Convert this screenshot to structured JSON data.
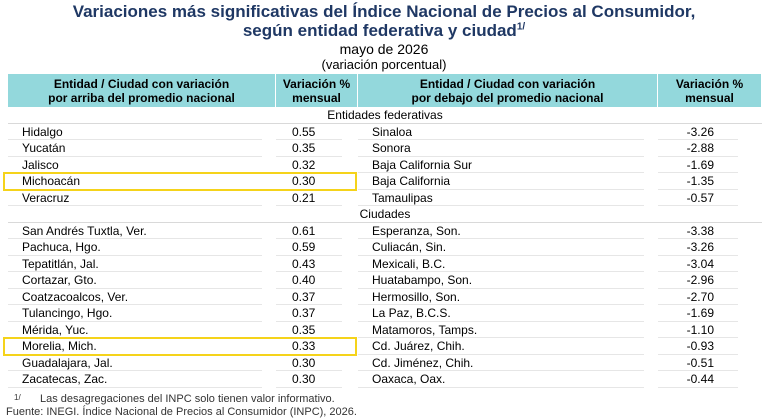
{
  "header": {
    "title_lines": [
      "Variaciones más significativas del Índice Nacional de Precios al Consumidor,",
      "según entidad federativa y ciudad"
    ],
    "title_superscript": "1/",
    "subtitle": "mayo de 2026",
    "unit": "(variación porcentual)"
  },
  "table": {
    "columns": [
      [
        "Entidad / Ciudad con variación",
        "por arriba del promedio nacional"
      ],
      [
        "Variación %",
        "mensual"
      ],
      [
        "Entidad / Ciudad con variación",
        "por debajo del promedio nacional"
      ],
      [
        "Variación %",
        "mensual"
      ]
    ],
    "sections": [
      {
        "title": "Entidades federativas",
        "highlight": [
          3
        ],
        "rows": [
          [
            "Hidalgo",
            "0.55",
            "Sinaloa",
            "-3.26"
          ],
          [
            "Yucatán",
            "0.35",
            "Sonora",
            "-2.88"
          ],
          [
            "Jalisco",
            "0.32",
            "Baja California Sur",
            "-1.69"
          ],
          [
            "Michoacán",
            "0.30",
            "Baja California",
            "-1.35"
          ],
          [
            "Veracruz",
            "0.21",
            "Tamaulipas",
            "-0.57"
          ]
        ]
      },
      {
        "title": "Ciudades",
        "highlight": [
          7
        ],
        "rows": [
          [
            "San Andrés Tuxtla, Ver.",
            "0.61",
            "Esperanza, Son.",
            "-3.38"
          ],
          [
            "Pachuca, Hgo.",
            "0.59",
            "Culiacán, Sin.",
            "-3.26"
          ],
          [
            "Tepatitlán, Jal.",
            "0.43",
            "Mexicali, B.C.",
            "-3.04"
          ],
          [
            "Cortazar, Gto.",
            "0.40",
            "Huatabampo, Son.",
            "-2.96"
          ],
          [
            "Coatzacoalcos, Ver.",
            "0.37",
            "Hermosillo, Son.",
            "-2.70"
          ],
          [
            "Tulancingo, Hgo.",
            "0.37",
            "La Paz, B.C.S.",
            "-1.69"
          ],
          [
            "Mérida, Yuc.",
            "0.35",
            "Matamoros, Tamps.",
            "-1.10"
          ],
          [
            "Morelia, Mich.",
            "0.33",
            "Cd. Juárez, Chih.",
            "-0.93"
          ],
          [
            "Guadalajara, Jal.",
            "0.30",
            "Cd. Jiménez, Chih.",
            "-0.51"
          ],
          [
            "Zacatecas, Zac.",
            "0.30",
            "Oaxaca, Oax.",
            "-0.44"
          ]
        ]
      }
    ]
  },
  "footnotes": {
    "marker": "1/",
    "note": "Las desagregaciones del INPC solo tienen valor informativo.",
    "source": "Fuente: INEGI. Índice Nacional de Precios al Consumidor (INPC), 2026."
  }
}
